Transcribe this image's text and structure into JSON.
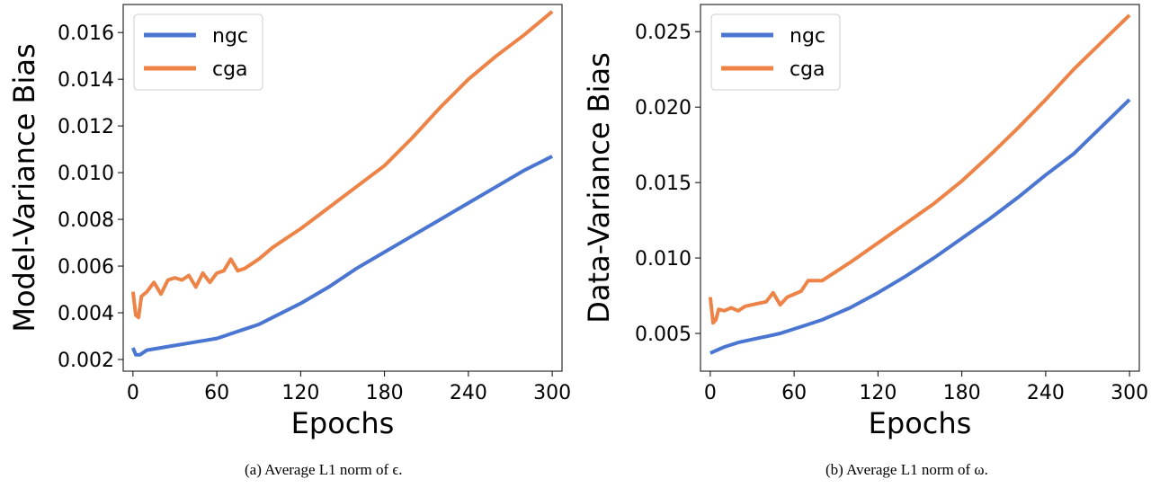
{
  "chart_data": [
    {
      "type": "line",
      "caption": "(a) Average L1 norm of ϵ.",
      "xlabel": "Epochs",
      "ylabel": "Model-Variance Bias",
      "xlim": [
        -7,
        307
      ],
      "ylim": [
        0.0015,
        0.0172
      ],
      "xticks": [
        0,
        60,
        120,
        180,
        240,
        300
      ],
      "yticks": [
        0.002,
        0.004,
        0.006,
        0.008,
        0.01,
        0.012,
        0.014,
        0.016
      ],
      "ytick_labels": [
        "0.002",
        "0.004",
        "0.006",
        "0.008",
        "0.010",
        "0.012",
        "0.014",
        "0.016"
      ],
      "grid": false,
      "legend_position": "top-left",
      "series": [
        {
          "name": "ngc",
          "color": "#4a76d2",
          "x": [
            0,
            2,
            5,
            10,
            20,
            30,
            40,
            50,
            60,
            70,
            80,
            90,
            100,
            120,
            140,
            160,
            180,
            200,
            220,
            240,
            260,
            280,
            300
          ],
          "y": [
            0.0025,
            0.0022,
            0.0022,
            0.0024,
            0.0025,
            0.0026,
            0.0027,
            0.0028,
            0.0029,
            0.0031,
            0.0033,
            0.0035,
            0.0038,
            0.0044,
            0.0051,
            0.0059,
            0.0066,
            0.0073,
            0.008,
            0.0087,
            0.0094,
            0.0101,
            0.0107
          ]
        },
        {
          "name": "cga",
          "color": "#ed8346",
          "x": [
            0,
            2,
            4,
            6,
            10,
            15,
            20,
            25,
            30,
            35,
            40,
            45,
            50,
            55,
            60,
            65,
            70,
            75,
            80,
            90,
            100,
            110,
            120,
            140,
            160,
            180,
            200,
            220,
            240,
            260,
            280,
            300
          ],
          "y": [
            0.0049,
            0.0039,
            0.0038,
            0.0047,
            0.0049,
            0.0053,
            0.0048,
            0.0054,
            0.0055,
            0.0054,
            0.0056,
            0.0051,
            0.0057,
            0.0053,
            0.0057,
            0.0058,
            0.0063,
            0.0058,
            0.0059,
            0.0063,
            0.0068,
            0.0072,
            0.0076,
            0.0085,
            0.0094,
            0.0103,
            0.0115,
            0.0128,
            0.014,
            0.015,
            0.0159,
            0.0169
          ]
        }
      ]
    },
    {
      "type": "line",
      "caption": "(b) Average L1 norm of ω.",
      "xlabel": "Epochs",
      "ylabel": "Data-Variance Bias",
      "xlim": [
        -7,
        307
      ],
      "ylim": [
        0.0025,
        0.0268
      ],
      "xticks": [
        0,
        60,
        120,
        180,
        240,
        300
      ],
      "yticks": [
        0.005,
        0.01,
        0.015,
        0.02,
        0.025
      ],
      "ytick_labels": [
        "0.005",
        "0.010",
        "0.015",
        "0.020",
        "0.025"
      ],
      "grid": false,
      "legend_position": "top-left",
      "series": [
        {
          "name": "ngc",
          "color": "#4a76d2",
          "x": [
            0,
            5,
            10,
            20,
            30,
            40,
            50,
            60,
            70,
            80,
            90,
            100,
            120,
            140,
            160,
            180,
            200,
            220,
            240,
            260,
            280,
            300
          ],
          "y": [
            0.0037,
            0.0039,
            0.0041,
            0.0044,
            0.0046,
            0.0048,
            0.005,
            0.0053,
            0.0056,
            0.0059,
            0.0063,
            0.0067,
            0.0077,
            0.0088,
            0.01,
            0.0113,
            0.0126,
            0.014,
            0.0155,
            0.0169,
            0.0187,
            0.0205
          ]
        },
        {
          "name": "cga",
          "color": "#ed8346",
          "x": [
            0,
            2,
            4,
            6,
            10,
            15,
            20,
            25,
            30,
            35,
            40,
            45,
            50,
            55,
            60,
            65,
            70,
            80,
            90,
            100,
            120,
            140,
            160,
            180,
            200,
            220,
            240,
            260,
            280,
            300
          ],
          "y": [
            0.0074,
            0.0057,
            0.0059,
            0.0066,
            0.0065,
            0.0067,
            0.0065,
            0.0068,
            0.0069,
            0.007,
            0.0071,
            0.0077,
            0.0069,
            0.0074,
            0.0076,
            0.0078,
            0.0085,
            0.0085,
            0.0091,
            0.0097,
            0.011,
            0.0123,
            0.0136,
            0.0151,
            0.0168,
            0.0186,
            0.0205,
            0.0225,
            0.0243,
            0.0261
          ]
        }
      ]
    }
  ]
}
